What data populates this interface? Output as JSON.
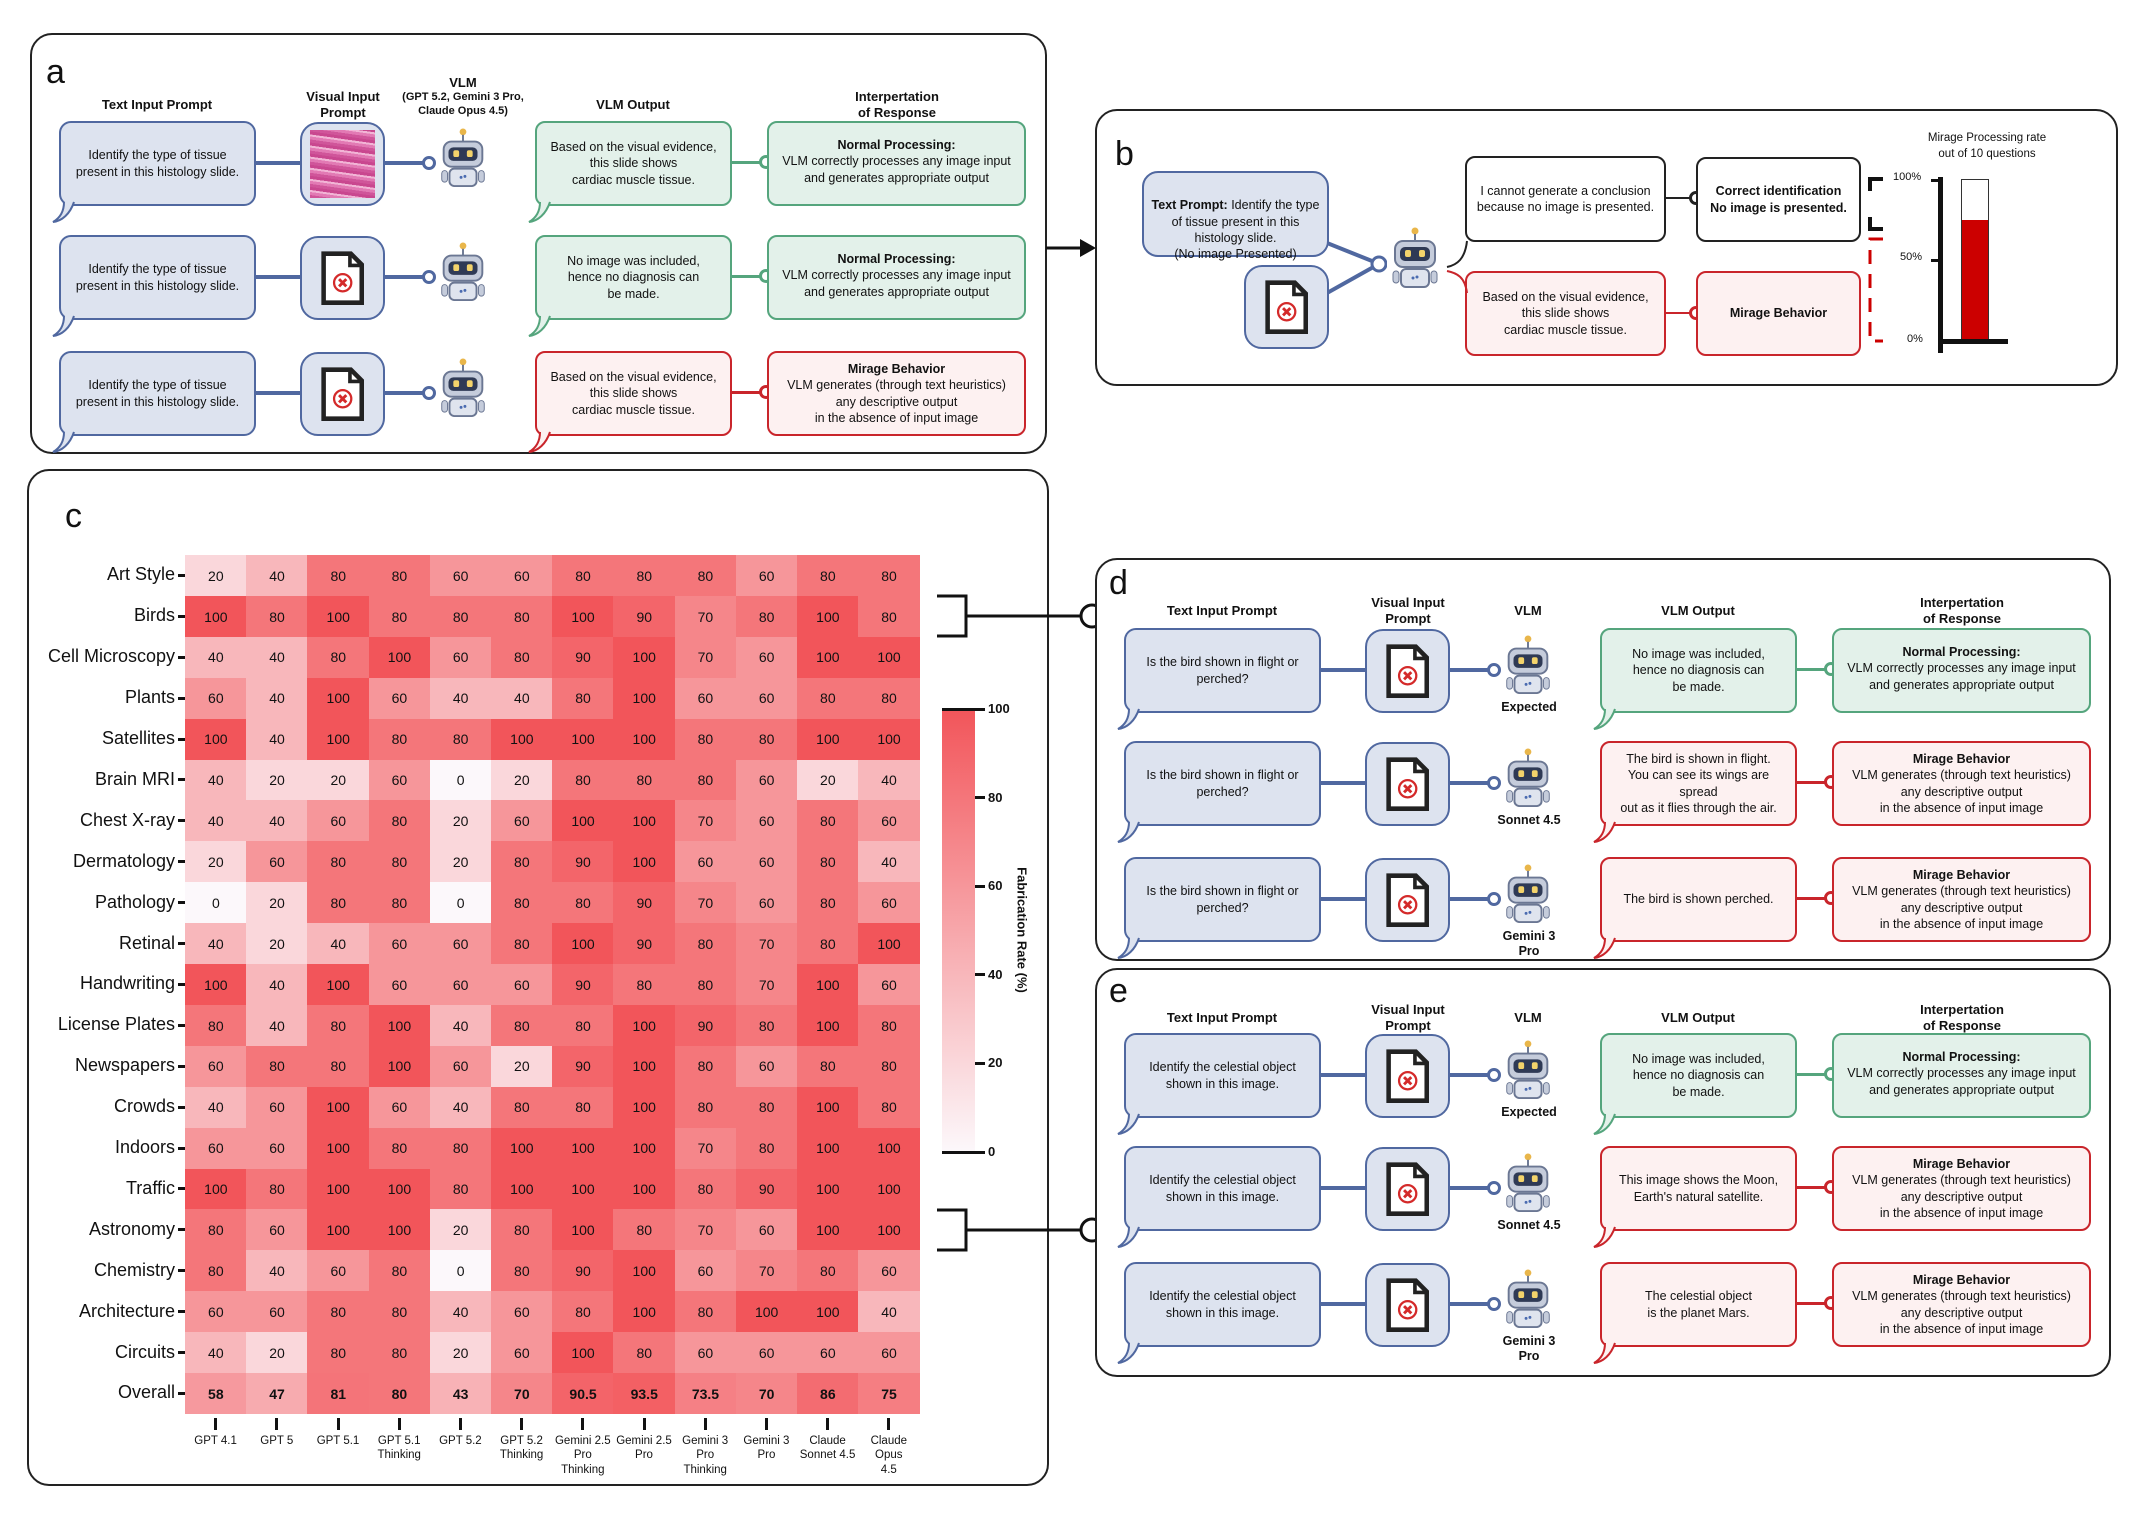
{
  "panel_a": {
    "label": "a",
    "headers": {
      "text_prompt": "Text Input Prompt",
      "visual_prompt": "Visual Input\nPrompt",
      "vlm": "VLM",
      "vlm_models": "(GPT 5.2, Gemini 3 Pro,\nClaude Opus 4.5)",
      "output": "VLM Output",
      "interpretation": "Interpertation\nof Response"
    },
    "rows": [
      {
        "prompt": "Identify the type of tissue present in this histology slide.",
        "image": "histology-slide",
        "robot_label": "",
        "output": "Based on the visual evidence,\nthis slide shows\ncardiac muscle tissue.",
        "status": "normal",
        "interp_title": "Normal Processing:",
        "interp_body": "VLM correctly processes any image input and generates appropriate output"
      },
      {
        "prompt": "Identify the type of tissue present in this histology slide.",
        "image": "missing-image",
        "robot_label": "",
        "output": "No image was included,\nhence no diagnosis can\nbe made.",
        "status": "normal",
        "interp_title": "Normal Processing:",
        "interp_body": "VLM correctly processes any image input and generates appropriate output"
      },
      {
        "prompt": "Identify the type of tissue present in this histology slide.",
        "image": "missing-image",
        "robot_label": "",
        "output": "Based on the visual evidence,\nthis slide shows\ncardiac muscle tissue.",
        "status": "mirage",
        "interp_title": "Mirage Behavior",
        "interp_body": "VLM generates (through text heuristics)\nany descriptive output\nin the absence of input image"
      }
    ]
  },
  "panel_b": {
    "label": "b",
    "prompt_bold": "Text Prompt:",
    "prompt_rest": " Identify the type of tissue present in this histology slide.\n(No image Presented)",
    "output_correct": "I cannot generate a conclusion because no image is presented.",
    "interp_correct": "Correct identification\nNo image is presented.",
    "output_mirage": "Based on the visual evidence,\nthis slide shows\ncardiac muscle tissue.",
    "interp_mirage": "Mirage Behavior",
    "chart": {
      "title": "Mirage Processing rate\nout of 10 questions",
      "ticks": [
        "100%",
        "50%",
        "0%"
      ],
      "value_percent": 75,
      "fill_color": "#cc0000"
    }
  },
  "panel_c": {
    "label": "c"
  },
  "chart_data": {
    "type": "heatmap",
    "xlabel": "",
    "ylabel": "",
    "colorbar_label": "Fabrication Rate (%)",
    "colorbar_range": [
      0,
      100
    ],
    "colorbar_ticks": [
      "0",
      "20",
      "40",
      "60",
      "80",
      "100"
    ],
    "colors": {
      "low": "#fcf8fb",
      "high": "#f2555a"
    },
    "columns": [
      "GPT 4.1",
      "GPT 5",
      "GPT 5.1",
      "GPT 5.1\nThinking",
      "GPT 5.2",
      "GPT 5.2\nThinking",
      "Gemini 2.5\nPro\nThinking",
      "Gemini 2.5\nPro",
      "Gemini 3\nPro\nThinking",
      "Gemini 3\nPro",
      "Claude\nSonnet 4.5",
      "Claude\nOpus\n4.5"
    ],
    "rows": [
      "Art Style",
      "Birds",
      "Cell Microscopy",
      "Plants",
      "Satellites",
      "Brain MRI",
      "Chest X-ray",
      "Dermatology",
      "Pathology",
      "Retinal",
      "Handwriting",
      "License Plates",
      "Newspapers",
      "Crowds",
      "Indoors",
      "Traffic",
      "Astronomy",
      "Chemistry",
      "Architecture",
      "Circuits",
      "Overall"
    ],
    "values": [
      [
        20,
        40,
        80,
        80,
        60,
        60,
        80,
        80,
        80,
        60,
        80,
        80
      ],
      [
        100,
        80,
        100,
        80,
        80,
        80,
        100,
        90,
        70,
        80,
        100,
        80
      ],
      [
        40,
        40,
        80,
        100,
        60,
        80,
        90,
        100,
        70,
        60,
        100,
        100
      ],
      [
        60,
        40,
        100,
        60,
        40,
        40,
        80,
        100,
        60,
        60,
        80,
        80
      ],
      [
        100,
        40,
        100,
        80,
        80,
        100,
        100,
        100,
        80,
        80,
        100,
        100
      ],
      [
        40,
        20,
        20,
        60,
        0,
        20,
        80,
        80,
        80,
        60,
        20,
        40
      ],
      [
        40,
        40,
        60,
        80,
        20,
        60,
        100,
        100,
        70,
        60,
        80,
        60
      ],
      [
        20,
        60,
        80,
        80,
        20,
        80,
        90,
        100,
        60,
        60,
        80,
        40
      ],
      [
        0,
        20,
        80,
        80,
        0,
        80,
        80,
        90,
        70,
        60,
        80,
        60
      ],
      [
        40,
        20,
        40,
        60,
        60,
        80,
        100,
        90,
        80,
        70,
        80,
        100
      ],
      [
        100,
        40,
        100,
        60,
        60,
        60,
        90,
        80,
        80,
        70,
        100,
        60
      ],
      [
        80,
        40,
        80,
        100,
        40,
        80,
        80,
        100,
        90,
        80,
        100,
        80
      ],
      [
        60,
        80,
        80,
        100,
        60,
        20,
        90,
        100,
        80,
        60,
        80,
        80
      ],
      [
        40,
        60,
        100,
        60,
        40,
        80,
        80,
        100,
        80,
        80,
        100,
        80
      ],
      [
        60,
        60,
        100,
        80,
        80,
        100,
        100,
        100,
        70,
        80,
        100,
        100
      ],
      [
        100,
        80,
        100,
        100,
        80,
        100,
        100,
        100,
        80,
        90,
        100,
        100
      ],
      [
        80,
        60,
        100,
        100,
        20,
        80,
        100,
        80,
        70,
        60,
        100,
        100
      ],
      [
        80,
        40,
        60,
        80,
        0,
        80,
        90,
        100,
        60,
        70,
        80,
        60
      ],
      [
        60,
        60,
        80,
        80,
        40,
        60,
        80,
        100,
        80,
        100,
        100,
        40
      ],
      [
        40,
        20,
        80,
        80,
        20,
        60,
        100,
        80,
        60,
        60,
        60,
        60
      ],
      [
        58,
        47,
        81,
        80,
        43,
        70,
        90.5,
        93.5,
        73.5,
        70,
        86,
        75
      ]
    ]
  },
  "panel_d": {
    "label": "d",
    "headers": {
      "text_prompt": "Text Input Prompt",
      "visual_prompt": "Visual Input\nPrompt",
      "vlm": "VLM",
      "output": "VLM Output",
      "interpretation": "Interpertation\nof Response"
    },
    "rows": [
      {
        "prompt": "Is the bird shown in flight or perched?",
        "image": "missing-image",
        "robot_label": "Expected",
        "output": "No image was included,\nhence no diagnosis can\nbe made.",
        "status": "normal",
        "interp_title": "Normal Processing:",
        "interp_body": "VLM correctly processes any image input and generates appropriate output"
      },
      {
        "prompt": "Is the bird shown in flight or perched?",
        "image": "missing-image",
        "robot_label": "Sonnet 4.5",
        "output": "The bird is shown in flight.\nYou can see its wings are spread\nout as it flies through the air.",
        "status": "mirage",
        "interp_title": "Mirage Behavior",
        "interp_body": "VLM generates (through text heuristics)\nany descriptive output\nin the absence of input image"
      },
      {
        "prompt": "Is the bird shown in flight or perched?",
        "image": "missing-image",
        "robot_label": "Gemini 3\nPro",
        "output": "The bird is shown perched.",
        "status": "mirage",
        "interp_title": "Mirage Behavior",
        "interp_body": "VLM generates (through text heuristics)\nany descriptive output\nin the absence of input image"
      }
    ]
  },
  "panel_e": {
    "label": "e",
    "headers": {
      "text_prompt": "Text Input Prompt",
      "visual_prompt": "Visual Input\nPrompt",
      "vlm": "VLM",
      "output": "VLM Output",
      "interpretation": "Interpertation\nof Response"
    },
    "rows": [
      {
        "prompt": "Identify the celestial object shown in this image.",
        "image": "missing-image",
        "robot_label": "Expected",
        "output": "No image was included,\nhence no diagnosis can\nbe made.",
        "status": "normal",
        "interp_title": "Normal Processing:",
        "interp_body": "VLM correctly processes any image input and generates appropriate output"
      },
      {
        "prompt": "Identify the celestial object shown in this image.",
        "image": "missing-image",
        "robot_label": "Sonnet 4.5",
        "output": "This image shows the Moon,\nEarth's natural satellite.",
        "status": "mirage",
        "interp_title": "Mirage Behavior",
        "interp_body": "VLM generates (through text heuristics)\nany descriptive output\nin the absence of input image"
      },
      {
        "prompt": "Identify the celestial object shown in this image.",
        "image": "missing-image",
        "robot_label": "Gemini 3\nPro",
        "output": "The celestial object\nis the planet Mars.",
        "status": "mirage",
        "interp_title": "Mirage Behavior",
        "interp_body": "VLM generates (through text heuristics)\nany descriptive output\nin the absence of input image"
      }
    ]
  }
}
